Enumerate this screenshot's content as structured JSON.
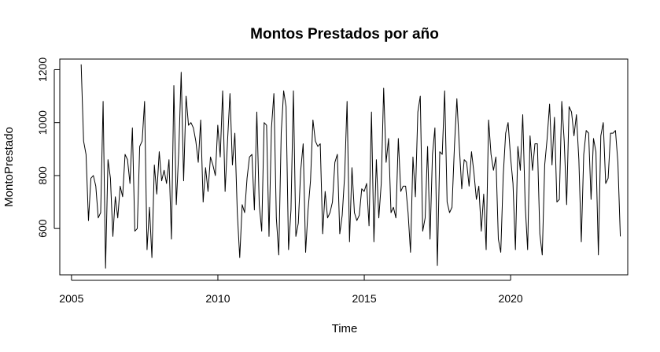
{
  "chart_data": {
    "type": "line",
    "title": "Montos Prestados por año",
    "xlabel": "Time",
    "ylabel": "MontoPrestado",
    "x_ticks": [
      2005,
      2010,
      2015,
      2020
    ],
    "y_ticks": [
      600,
      800,
      1000,
      1200
    ],
    "xlim": [
      2004.6,
      2024.0
    ],
    "ylim": [
      425,
      1240
    ],
    "grid": false,
    "legend": "none",
    "line_color": "#000000",
    "series": [
      {
        "frequency": "monthly",
        "start": 2005.33,
        "values": [
          1220,
          930,
          880,
          630,
          790,
          800,
          760,
          640,
          660,
          1080,
          450,
          860,
          790,
          570,
          720,
          640,
          760,
          720,
          880,
          860,
          770,
          980,
          590,
          600,
          910,
          930,
          1080,
          520,
          680,
          490,
          840,
          730,
          890,
          780,
          820,
          770,
          860,
          560,
          1140,
          690,
          890,
          1190,
          780,
          1100,
          990,
          1000,
          980,
          930,
          850,
          1010,
          700,
          830,
          740,
          870,
          840,
          800,
          990,
          870,
          1120,
          740,
          930,
          1110,
          840,
          960,
          660,
          490,
          690,
          660,
          790,
          870,
          880,
          670,
          1040,
          690,
          590,
          1000,
          990,
          570,
          980,
          1110,
          640,
          500,
          960,
          1120,
          1060,
          520,
          670,
          1120,
          570,
          620,
          820,
          920,
          510,
          670,
          780,
          1010,
          930,
          910,
          920,
          580,
          740,
          640,
          660,
          700,
          850,
          880,
          580,
          650,
          800,
          1080,
          550,
          830,
          660,
          630,
          650,
          750,
          740,
          770,
          610,
          1040,
          550,
          860,
          640,
          770,
          1130,
          850,
          940,
          660,
          680,
          640,
          940,
          740,
          760,
          760,
          660,
          510,
          870,
          720,
          1040,
          1100,
          590,
          640,
          910,
          560,
          880,
          980,
          460,
          890,
          880,
          1120,
          700,
          660,
          680,
          910,
          1090,
          910,
          750,
          860,
          850,
          760,
          890,
          810,
          710,
          760,
          590,
          730,
          520,
          1010,
          880,
          820,
          870,
          560,
          510,
          800,
          960,
          1000,
          870,
          770,
          520,
          910,
          820,
          1030,
          690,
          520,
          950,
          820,
          920,
          920,
          580,
          500,
          840,
          940,
          1070,
          840,
          1020,
          700,
          710,
          1080,
          930,
          690,
          1060,
          1040,
          950,
          1030,
          860,
          550,
          880,
          970,
          960,
          710,
          940,
          890,
          500,
          950,
          1000,
          770,
          790,
          960,
          960,
          970,
          850,
          570
        ]
      }
    ]
  }
}
